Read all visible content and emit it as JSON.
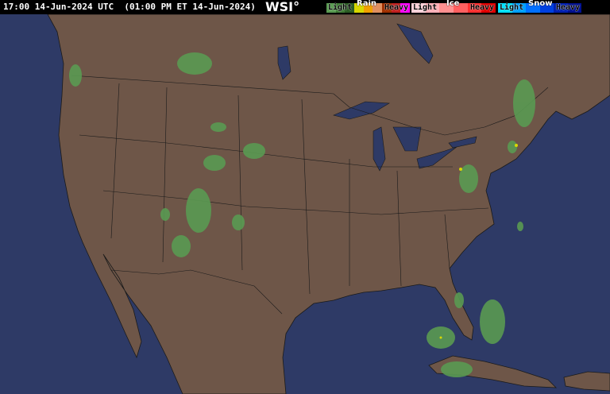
{
  "header": {
    "title": "17:00 14-Jun-2024 UTC  (01:00 PM ET 14-Jun-2024)",
    "logo": "WSI°"
  },
  "legend": {
    "rain": {
      "caption": "Rain",
      "light": "Light",
      "heavy": "Heavy",
      "colors": [
        "#5a9a52",
        "#3f7a35",
        "#2c5d25",
        "#d8d800",
        "#f0a000",
        "#e09060",
        "#a03000",
        "#c02020",
        "#ff00ff"
      ]
    },
    "ice": {
      "caption": "Ice",
      "light": "Light",
      "heavy": "Heavy",
      "colors": [
        "#ffd0d8",
        "#ffb0b8",
        "#ff9090",
        "#ff6060",
        "#ff3030",
        "#e00000"
      ]
    },
    "snow": {
      "caption": "Snow",
      "light": "Light",
      "heavy": "Heavy",
      "colors": [
        "#00e0ff",
        "#00a0ff",
        "#0070ff",
        "#0040e0",
        "#0020b0",
        "#001090"
      ]
    }
  },
  "map": {
    "ocean_color": "#2e3a66",
    "land_color": "#6e5648",
    "border_color": "#1a1a1a",
    "radar_color": "#5a9a52"
  }
}
